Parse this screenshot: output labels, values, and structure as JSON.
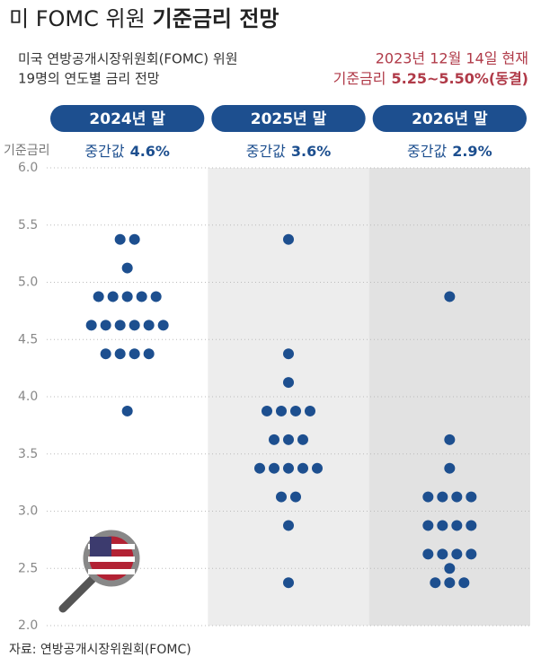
{
  "chart_data": {
    "type": "dot",
    "title": "미 FOMC 위원",
    "title_bold": "기준금리 전망",
    "subtitle": [
      "미국 연방공개시장위원회(FOMC) 위원",
      "19명의 연도별 금리 전망"
    ],
    "date_note": "2023년 12월 14일 현재",
    "rate_label": "기준금리",
    "rate_value": "5.25~5.50%(동결)",
    "y_label": "기준금리",
    "median_prefix": "중간값",
    "source": "자료: 연방공개시장위원회(FOMC)",
    "ylim": [
      2,
      6
    ],
    "yticks": [
      {
        "value": 2,
        "label": "2.0"
      },
      2.5,
      {
        "value": 3,
        "label": "3.0"
      },
      3.5,
      {
        "value": 4,
        "label": "4.0"
      },
      4.5,
      {
        "value": 5,
        "label": "5.0"
      },
      5.5,
      {
        "value": 6,
        "label": "6.0"
      }
    ],
    "grid": true,
    "color": "#1d4f8f",
    "series": [
      {
        "name": "2024년 말",
        "median": {
          "value": 4.6,
          "label": "4.6%"
        },
        "background": "#ffffff",
        "values": [
          5.375,
          5.375,
          5.125,
          4.875,
          4.875,
          4.875,
          4.875,
          4.875,
          4.625,
          4.625,
          4.625,
          4.625,
          4.625,
          4.625,
          4.375,
          4.375,
          4.375,
          4.375,
          3.875
        ]
      },
      {
        "name": "2025년 말",
        "median": {
          "value": 3.6,
          "label": "3.6%"
        },
        "background": "#ededed",
        "values": [
          5.375,
          4.375,
          4.125,
          3.875,
          3.875,
          3.875,
          3.875,
          3.625,
          3.625,
          3.625,
          3.375,
          3.375,
          3.375,
          3.375,
          3.375,
          3.125,
          3.125,
          2.875,
          2.375
        ]
      },
      {
        "name": "2026년 말",
        "median": {
          "value": 2.9,
          "label": "2.9%"
        },
        "background": "#e2e2e2",
        "values": [
          4.875,
          3.625,
          3.375,
          3.125,
          3.125,
          3.125,
          3.125,
          2.875,
          2.875,
          2.875,
          2.875,
          2.625,
          2.625,
          2.625,
          2.625,
          2.5,
          2.375,
          2.375,
          2.375
        ]
      }
    ]
  }
}
